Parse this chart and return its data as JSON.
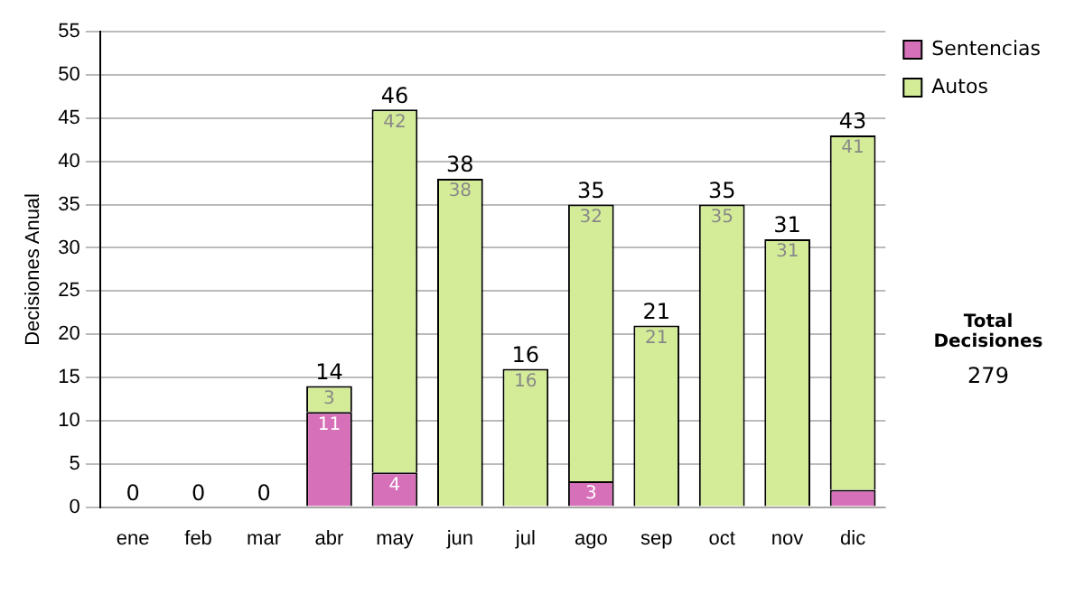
{
  "chart_data": {
    "type": "bar",
    "stacked": true,
    "ylabel": "Decisiones Anual",
    "categories": [
      "ene",
      "feb",
      "mar",
      "abr",
      "may",
      "jun",
      "jul",
      "ago",
      "sep",
      "oct",
      "nov",
      "dic"
    ],
    "series": [
      {
        "name": "Sentencias",
        "color": "#d670b8",
        "values": [
          0,
          0,
          0,
          11,
          4,
          0,
          0,
          3,
          0,
          0,
          0,
          2
        ],
        "value_labels": [
          null,
          null,
          null,
          "11",
          "4",
          null,
          null,
          "3",
          null,
          null,
          null,
          null
        ]
      },
      {
        "name": "Autos",
        "color": "#d4ec98",
        "values": [
          0,
          0,
          0,
          3,
          42,
          38,
          16,
          32,
          21,
          35,
          31,
          41
        ],
        "value_labels": [
          null,
          null,
          null,
          "3",
          "42",
          "38",
          "16",
          "32",
          "21",
          "35",
          "31",
          "41"
        ]
      }
    ],
    "totals": [
      "0",
      "0",
      "0",
      "14",
      "46",
      "38",
      "16",
      "35",
      "21",
      "35",
      "31",
      "43"
    ],
    "ylim": [
      0,
      55
    ],
    "yticks": [
      0,
      5,
      10,
      15,
      20,
      25,
      30,
      35,
      40,
      45,
      50,
      55
    ],
    "grid": "y",
    "legend": "right",
    "annotations": [
      "Total Decisiones",
      "279"
    ]
  }
}
